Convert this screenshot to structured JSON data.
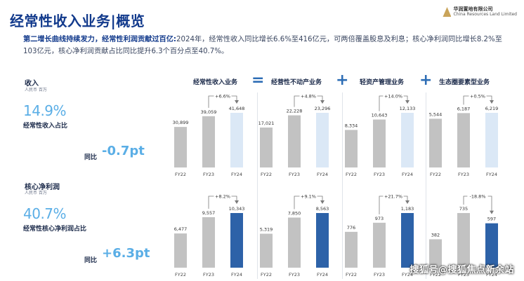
{
  "header": {
    "title": "经常性收入业务|概览",
    "logo_cn": "华润置地有限公司",
    "logo_en": "China Resources Land Limited"
  },
  "subtitle": {
    "highlight": "第二增长曲线持续发力，经常性利润贡献过百亿:",
    "body": "2024年，经常性收入同比增长6.6%至416亿元，可两倍覆盖股息及利息；核心净利润同比增长8.2%至103亿元，核心净利润贡献占比同比提升6.3个百分点至40.7%。"
  },
  "revenue_section": {
    "title": "收入",
    "unit": "人民币 百万",
    "share_value": "14.9%",
    "share_label": "经常性收入占比",
    "yoy_label": "同比",
    "yoy_value": "-0.7pt"
  },
  "profit_section": {
    "title": "核心净利润",
    "unit": "人民币 百万",
    "share_value": "40.7%",
    "share_label": "经常性核心净利润占比",
    "yoy_label": "同比",
    "yoy_value": "+6.3pt"
  },
  "column_headers": [
    "经常性收入业务",
    "经营性不动产业务",
    "轻资产管理业务",
    "生态圈要素型业务"
  ],
  "operators": [
    "=",
    "+",
    "+",
    "+"
  ],
  "colors": {
    "grey_bar": "#c2c2c2",
    "light_blue_bar": "#dbe8f6",
    "dark_blue_bar": "#2d62a8",
    "accent": "#5aaee6"
  },
  "chart_data": [
    {
      "type": "bar",
      "title": "经常性收入业务",
      "metric": "收入",
      "categories": [
        "FY22",
        "FY23",
        "FY24"
      ],
      "values": [
        30899,
        39059,
        41648
      ],
      "labels": [
        "30,899",
        "39,059",
        "41,648"
      ],
      "growth": "+6.6%"
    },
    {
      "type": "bar",
      "title": "经营性不动产业务",
      "metric": "收入",
      "categories": [
        "FY22",
        "FY23",
        "FY24"
      ],
      "values": [
        17021,
        22228,
        23296
      ],
      "labels": [
        "17,021",
        "22,228",
        "23,296"
      ],
      "growth": "+4.8%"
    },
    {
      "type": "bar",
      "title": "轻资产管理业务",
      "metric": "收入",
      "categories": [
        "FY22",
        "FY23",
        "FY24"
      ],
      "values": [
        8334,
        10643,
        12133
      ],
      "labels": [
        "8,334",
        "10,643",
        "12,133"
      ],
      "growth": "+14.0%"
    },
    {
      "type": "bar",
      "title": "生态圈要素型业务",
      "metric": "收入",
      "categories": [
        "FY22",
        "FY23",
        "FY24"
      ],
      "values": [
        5544,
        6187,
        6219
      ],
      "labels": [
        "5,544",
        "6,187",
        "6,219"
      ],
      "growth": "+0.5%"
    },
    {
      "type": "bar",
      "title": "经常性收入业务",
      "metric": "核心净利润",
      "categories": [
        "FY22",
        "FY23",
        "FY24"
      ],
      "values": [
        6477,
        9557,
        10343
      ],
      "labels": [
        "6,477",
        "9,557",
        "10,343"
      ],
      "growth": "+8.2%"
    },
    {
      "type": "bar",
      "title": "经营性不动产业务",
      "metric": "核心净利润",
      "categories": [
        "FY22",
        "FY23",
        "FY24"
      ],
      "values": [
        5319,
        7850,
        8563
      ],
      "labels": [
        "5,319",
        "7,850",
        "8,563"
      ],
      "growth": "+9.1%"
    },
    {
      "type": "bar",
      "title": "轻资产管理业务",
      "metric": "核心净利润",
      "categories": [
        "FY22",
        "FY23",
        "FY24"
      ],
      "values": [
        776,
        973,
        1183
      ],
      "labels": [
        "776",
        "973",
        "1,183"
      ],
      "growth": "+21.7%"
    },
    {
      "type": "bar",
      "title": "生态圈要素型业务",
      "metric": "核心净利润",
      "categories": [
        "FY22",
        "FY23",
        "FY24"
      ],
      "values": [
        382,
        735,
        597
      ],
      "labels": [
        "382",
        "735",
        "597"
      ],
      "growth": "-18.8%"
    }
  ],
  "watermark": "搜狐号@搜狐焦点新余站"
}
